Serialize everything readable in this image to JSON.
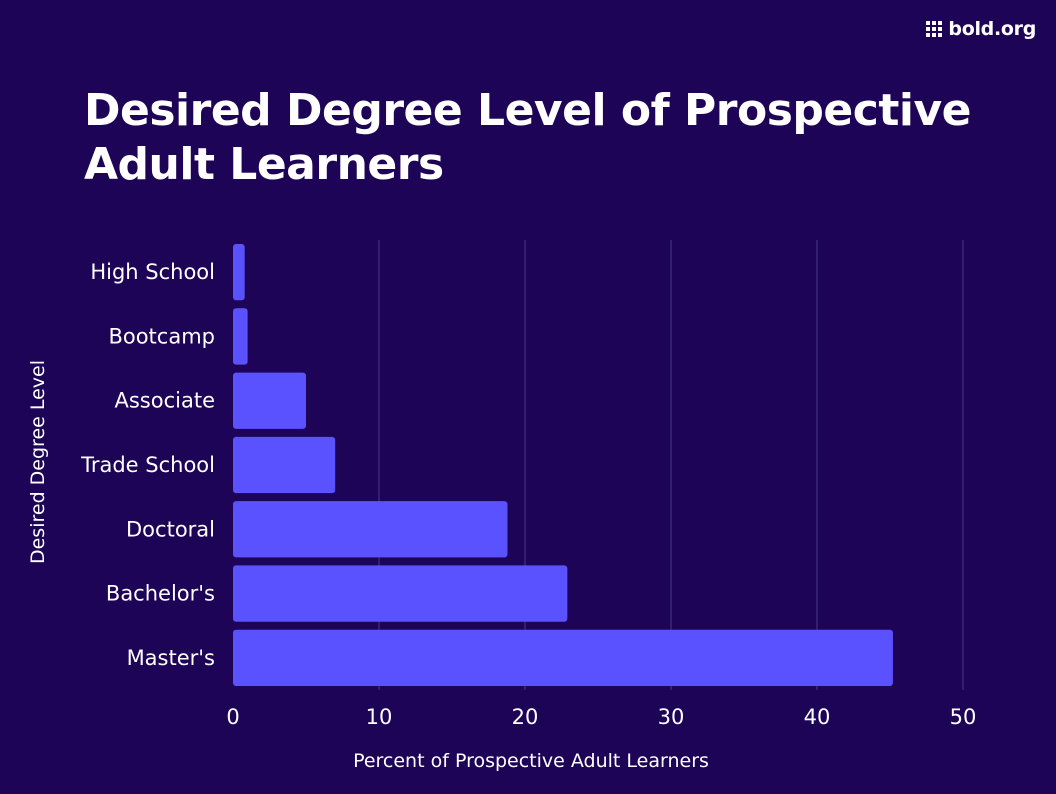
{
  "brand": {
    "logo_text": "bold.org",
    "logo_icon": "grid-dots-icon"
  },
  "colors": {
    "background": "#1d0457",
    "bar": "#5b52ff",
    "text": "#ffffff",
    "grid": "#4a3a84"
  },
  "chart_data": {
    "type": "bar",
    "orientation": "horizontal",
    "title": "Desired Degree Level of Prospective Adult Learners",
    "xlabel": "Percent of Prospective Adult Learners",
    "ylabel": "Desired Degree Level",
    "categories": [
      "High School",
      "Bootcamp",
      "Associate",
      "Trade School",
      "Doctoral",
      "Bachelor's",
      "Master's"
    ],
    "values": [
      0.8,
      1.0,
      5.0,
      7.0,
      18.8,
      22.9,
      45.2
    ],
    "xlim": [
      0,
      50
    ],
    "xticks": [
      0,
      10,
      20,
      30,
      40,
      50
    ],
    "grid": "vertical",
    "legend": "none"
  }
}
